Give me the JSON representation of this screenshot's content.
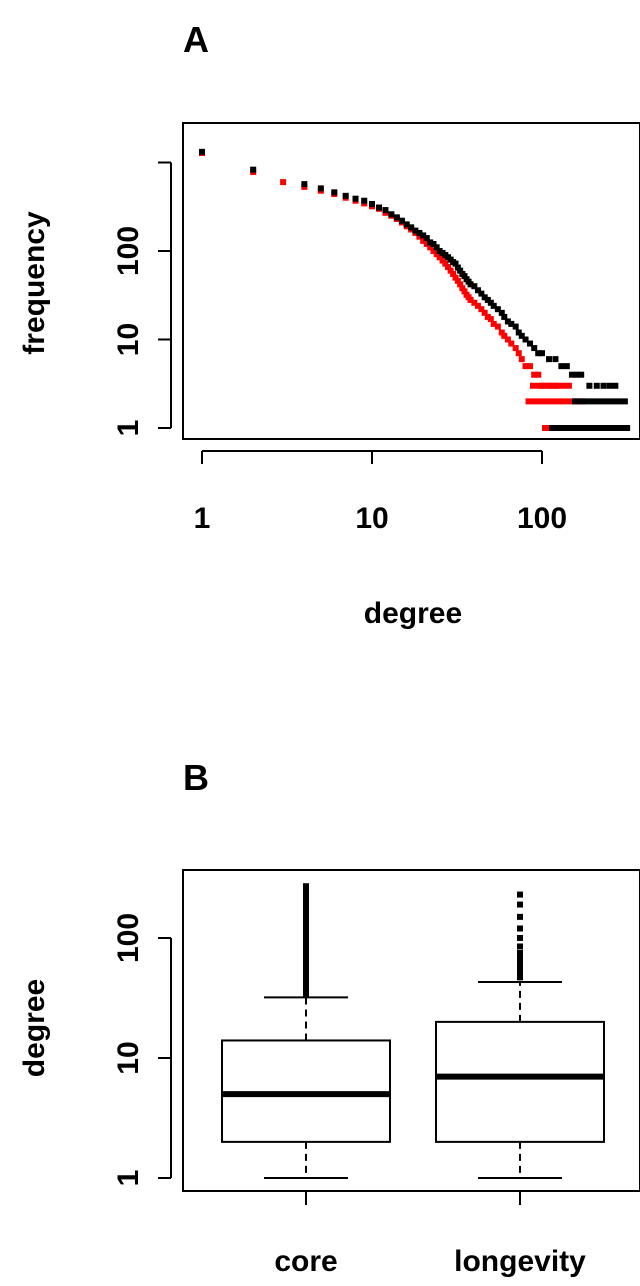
{
  "chart_data": [
    {
      "panel": "A",
      "type": "scatter",
      "xlabel": "degree",
      "ylabel": "frequency",
      "x_scale": "log",
      "y_scale": "log",
      "x_ticks": [
        {
          "value": 1,
          "label": "1"
        },
        {
          "value": 10,
          "label": "10"
        },
        {
          "value": 100,
          "label": "100"
        }
      ],
      "y_ticks": [
        {
          "value": 1,
          "label": "1"
        },
        {
          "value": 10,
          "label": "10"
        },
        {
          "value": 100,
          "label": "100"
        },
        {
          "value": 1000,
          "label": ""
        }
      ],
      "xlim": [
        0.7,
        380
      ],
      "ylim": [
        0.85,
        1500
      ],
      "series": [
        {
          "color": "#000000",
          "points": [
            [
              1,
              1320
            ],
            [
              2,
              830
            ],
            [
              4,
              570
            ],
            [
              5,
              510
            ],
            [
              6,
              460
            ],
            [
              7,
              420
            ],
            [
              8,
              390
            ],
            [
              9,
              370
            ],
            [
              10,
              340
            ],
            [
              11,
              310
            ],
            [
              12,
              290
            ],
            [
              13,
              260
            ],
            [
              14,
              240
            ],
            [
              15,
              220
            ],
            [
              16,
              200
            ],
            [
              17,
              185
            ],
            [
              18,
              170
            ],
            [
              19,
              160
            ],
            [
              20,
              150
            ],
            [
              21,
              140
            ],
            [
              22,
              125
            ],
            [
              23,
              120
            ],
            [
              24,
              110
            ],
            [
              25,
              100
            ],
            [
              26,
              95
            ],
            [
              27,
              90
            ],
            [
              28,
              85
            ],
            [
              29,
              80
            ],
            [
              30,
              75
            ],
            [
              31,
              72
            ],
            [
              32,
              65
            ],
            [
              33,
              60
            ],
            [
              34,
              55
            ],
            [
              35,
              52
            ],
            [
              36,
              48
            ],
            [
              37,
              45
            ],
            [
              38,
              42
            ],
            [
              40,
              40
            ],
            [
              42,
              36
            ],
            [
              44,
              33
            ],
            [
              46,
              30
            ],
            [
              48,
              28
            ],
            [
              50,
              26
            ],
            [
              52,
              24
            ],
            [
              55,
              22
            ],
            [
              58,
              20
            ],
            [
              60,
              18
            ],
            [
              63,
              16
            ],
            [
              66,
              15
            ],
            [
              70,
              14
            ],
            [
              73,
              12
            ],
            [
              76,
              11
            ],
            [
              80,
              10
            ],
            [
              85,
              9
            ],
            [
              90,
              8
            ],
            [
              95,
              7
            ],
            [
              100,
              7
            ],
            [
              110,
              6
            ],
            [
              120,
              6
            ],
            [
              130,
              5
            ],
            [
              140,
              5
            ],
            [
              150,
              4
            ],
            [
              160,
              4
            ],
            [
              170,
              4
            ],
            [
              190,
              3
            ],
            [
              210,
              3
            ],
            [
              230,
              3
            ],
            [
              250,
              3
            ],
            [
              270,
              3
            ]
          ],
          "segments": [
            [
              150,
              320,
              2
            ],
            [
              180,
              300,
              1
            ],
            [
              110,
              330,
              1
            ]
          ]
        },
        {
          "color": "#ff0000",
          "points": [
            [
              1,
              1280
            ],
            [
              2,
              780
            ],
            [
              3,
              600
            ],
            [
              4,
              530
            ],
            [
              5,
              480
            ],
            [
              6,
              440
            ],
            [
              7,
              400
            ],
            [
              8,
              370
            ],
            [
              9,
              345
            ],
            [
              10,
              320
            ],
            [
              11,
              300
            ],
            [
              12,
              270
            ],
            [
              13,
              250
            ],
            [
              14,
              230
            ],
            [
              15,
              210
            ],
            [
              16,
              190
            ],
            [
              17,
              175
            ],
            [
              18,
              160
            ],
            [
              19,
              145
            ],
            [
              20,
              130
            ],
            [
              21,
              120
            ],
            [
              22,
              110
            ],
            [
              23,
              100
            ],
            [
              24,
              92
            ],
            [
              25,
              85
            ],
            [
              26,
              78
            ],
            [
              27,
              72
            ],
            [
              28,
              66
            ],
            [
              29,
              60
            ],
            [
              30,
              55
            ],
            [
              31,
              50
            ],
            [
              32,
              46
            ],
            [
              33,
              42
            ],
            [
              34,
              38
            ],
            [
              35,
              35
            ],
            [
              36,
              32
            ],
            [
              37,
              30
            ],
            [
              38,
              28
            ],
            [
              40,
              26
            ],
            [
              42,
              24
            ],
            [
              44,
              22
            ],
            [
              46,
              20
            ],
            [
              48,
              18
            ],
            [
              50,
              17
            ],
            [
              52,
              15
            ],
            [
              55,
              14
            ],
            [
              58,
              12
            ],
            [
              60,
              11
            ],
            [
              63,
              10
            ],
            [
              66,
              9
            ],
            [
              70,
              8
            ],
            [
              73,
              7
            ],
            [
              76,
              6
            ],
            [
              80,
              5
            ],
            [
              85,
              5
            ],
            [
              90,
              4
            ],
            [
              95,
              4
            ],
            [
              100,
              3
            ],
            [
              110,
              3
            ],
            [
              120,
              3
            ]
          ],
          "segments": [
            [
              80,
              180,
              2
            ],
            [
              100,
              190,
              1
            ],
            [
              85,
              150,
              3
            ]
          ]
        }
      ]
    },
    {
      "panel": "B",
      "type": "box",
      "ylabel": "degree",
      "y_scale": "log",
      "y_ticks": [
        {
          "value": 1,
          "label": "1"
        },
        {
          "value": 10,
          "label": "10"
        },
        {
          "value": 100,
          "label": "100"
        }
      ],
      "ylim": [
        0.85,
        350
      ],
      "categories": [
        "core",
        "longevity"
      ],
      "boxes": [
        {
          "name": "core",
          "whisker_low": 1,
          "q1": 2,
          "median": 5,
          "q3": 14,
          "whisker_high": 32,
          "outliers": [
            34,
            37,
            40,
            44,
            48,
            53,
            58,
            64,
            70,
            77,
            85,
            94,
            104,
            115,
            127,
            140,
            155,
            170,
            188,
            207,
            228,
            250,
            270
          ]
        },
        {
          "name": "longevity",
          "whisker_low": 1,
          "q1": 2,
          "median": 7,
          "q3": 20,
          "whisker_high": 43,
          "outliers": [
            47,
            52,
            57,
            62,
            68,
            75,
            85,
            100,
            120,
            150,
            190,
            230
          ]
        }
      ]
    }
  ]
}
